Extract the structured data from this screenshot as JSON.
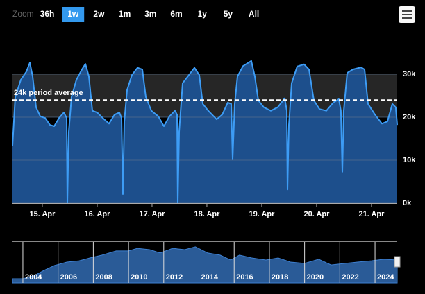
{
  "chart_data": {
    "type": "area",
    "range_selector": {
      "label": "Zoom",
      "buttons": [
        "36h",
        "1w",
        "2w",
        "1m",
        "3m",
        "6m",
        "1y",
        "5y",
        "All"
      ],
      "selected": 1
    },
    "x": [
      14.456,
      14.507,
      14.608,
      14.709,
      14.772,
      14.823,
      14.886,
      14.962,
      15.051,
      15.14,
      15.215,
      15.304,
      15.393,
      15.443,
      15.456,
      15.481,
      15.532,
      15.621,
      15.722,
      15.785,
      15.848,
      15.912,
      16.0,
      16.102,
      16.215,
      16.317,
      16.405,
      16.443,
      16.469,
      16.494,
      16.545,
      16.633,
      16.734,
      16.823,
      16.886,
      16.988,
      17.114,
      17.215,
      17.317,
      17.418,
      17.456,
      17.469,
      17.494,
      17.557,
      17.671,
      17.772,
      17.861,
      17.924,
      18.026,
      18.178,
      18.279,
      18.38,
      18.443,
      18.469,
      18.507,
      18.557,
      18.659,
      18.81,
      18.874,
      18.937,
      19.038,
      19.165,
      19.291,
      19.418,
      19.456,
      19.469,
      19.494,
      19.545,
      19.646,
      19.772,
      19.861,
      19.95,
      20.051,
      20.178,
      20.304,
      20.405,
      20.443,
      20.469,
      20.494,
      20.557,
      20.659,
      20.81,
      20.874,
      20.937,
      21.064,
      21.19,
      21.291,
      21.38,
      21.443,
      21.469
    ],
    "values": [
      13400,
      24700,
      28700,
      30600,
      32700,
      29500,
      22300,
      20200,
      19800,
      18200,
      17900,
      19800,
      21100,
      19800,
      0,
      16600,
      24700,
      28700,
      31100,
      32400,
      29500,
      21500,
      21100,
      19800,
      18500,
      20600,
      21100,
      19800,
      2100,
      19000,
      26300,
      29800,
      31500,
      31100,
      24700,
      21500,
      20200,
      17900,
      20200,
      21500,
      20600,
      0,
      16600,
      27900,
      29800,
      31500,
      29800,
      23100,
      21500,
      19500,
      20600,
      23400,
      23100,
      10200,
      23100,
      29500,
      31900,
      33100,
      29500,
      23900,
      22300,
      21500,
      22300,
      24400,
      21500,
      3200,
      18200,
      27900,
      31800,
      32300,
      31100,
      23900,
      21900,
      21500,
      23400,
      24200,
      21500,
      7300,
      21500,
      30300,
      31100,
      31600,
      31100,
      23100,
      20600,
      18500,
      19000,
      23100,
      22300,
      18200
    ],
    "color": "#1d4f8c",
    "line_color": "#3d9cf5",
    "xlim": [
      14.456,
      21.469
    ],
    "xticks": [
      {
        "value": 15,
        "label": "15. Apr"
      },
      {
        "value": 16,
        "label": "16. Apr"
      },
      {
        "value": 17,
        "label": "17. Apr"
      },
      {
        "value": 18,
        "label": "18. Apr"
      },
      {
        "value": 19,
        "label": "19. Apr"
      },
      {
        "value": 20,
        "label": "20. Apr"
      },
      {
        "value": 21,
        "label": "21. Apr"
      }
    ],
    "ylim": [
      0,
      40000
    ],
    "yticks": [
      {
        "value": 0,
        "label": "0k"
      },
      {
        "value": 10000,
        "label": "10k"
      },
      {
        "value": 20000,
        "label": "20k"
      },
      {
        "value": 30000,
        "label": "30k"
      }
    ],
    "grid": true,
    "plot_band": {
      "from": 20000,
      "to": 30000,
      "color": "#262626"
    },
    "average_line": {
      "value": 24000,
      "label": "24k period average"
    },
    "navigator": {
      "x": [
        2003.41,
        2004.0,
        2004.6,
        2005.2,
        2005.8,
        2006.5,
        2007.2,
        2007.8,
        2008.5,
        2009.3,
        2010.0,
        2010.5,
        2011.2,
        2011.8,
        2012.5,
        2013.2,
        2013.8,
        2014.5,
        2015.2,
        2015.8,
        2016.3,
        2017.0,
        2017.8,
        2018.5,
        2019.2,
        2020.0,
        2020.8,
        2021.5,
        2022.3,
        2023.0,
        2023.8,
        2024.5,
        2025.26
      ],
      "values": [
        4000,
        4000,
        6700,
        12000,
        16700,
        20000,
        21300,
        24000,
        26700,
        30700,
        30700,
        33300,
        32000,
        28700,
        33300,
        32000,
        34700,
        28700,
        26700,
        22000,
        26700,
        24000,
        22000,
        24000,
        20000,
        18700,
        22700,
        17300,
        18700,
        20000,
        21300,
        22700,
        22000
      ],
      "color": "#2a5b97",
      "xlim": [
        2003.41,
        2025.26
      ],
      "xticks": [
        2004,
        2006,
        2008,
        2010,
        2012,
        2014,
        2016,
        2018,
        2020,
        2022,
        2024
      ]
    }
  }
}
